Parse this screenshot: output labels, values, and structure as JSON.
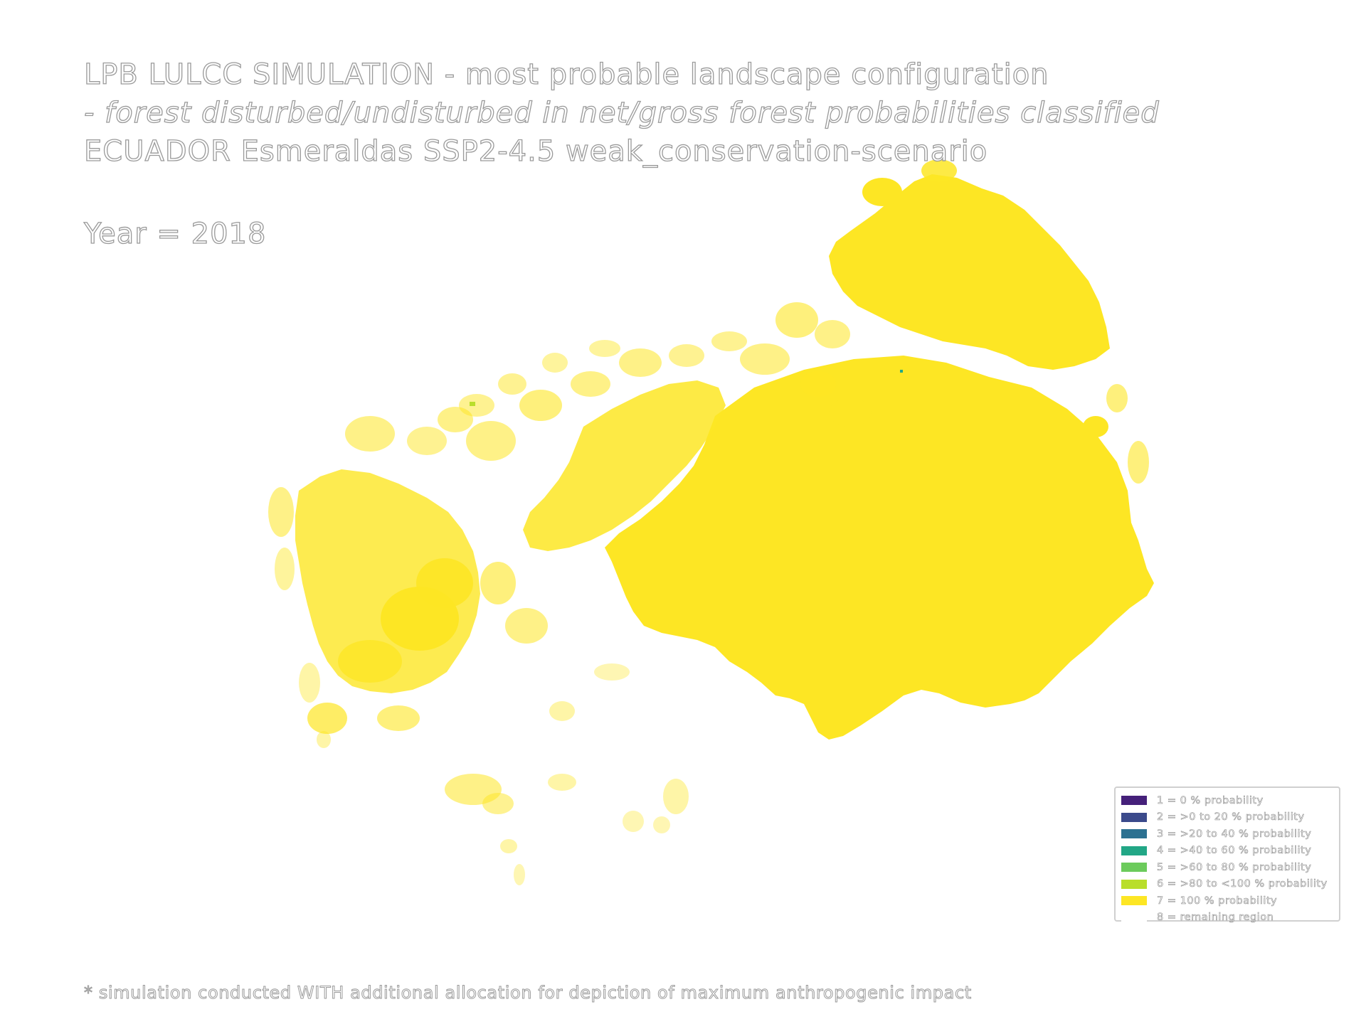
{
  "title": {
    "line1": "LPB LULCC SIMULATION - most probable landscape configuration",
    "line2": " - forest disturbed/undisturbed in net/gross forest probabilities classified",
    "line3": "ECUADOR Esmeraldas SSP2-4.5 weak_conservation-scenario"
  },
  "year_label": "Year = 2018",
  "legend": {
    "items": [
      {
        "label": "1 = 0 % probability",
        "color": "#45207a"
      },
      {
        "label": "2 = >0 to 20 % probability",
        "color": "#3b4a8b"
      },
      {
        "label": "3 = >20 to 40 % probability",
        "color": "#2c7191"
      },
      {
        "label": "4 = >40 to 60 % probability",
        "color": "#22a786"
      },
      {
        "label": "5 = >60 to 80 % probability",
        "color": "#6ccb5c"
      },
      {
        "label": "6 = >80 to <100 % probability",
        "color": "#b9de2b"
      },
      {
        "label": "7 = 100 % probability",
        "color": "#fde624"
      },
      {
        "label": "8 = remaining region",
        "color": "#ffffff"
      }
    ]
  },
  "map": {
    "fill_color": "#fde624",
    "background_color": "#ffffff"
  },
  "footnote": "* simulation conducted WITH additional allocation for depiction of maximum anthropogenic impact"
}
